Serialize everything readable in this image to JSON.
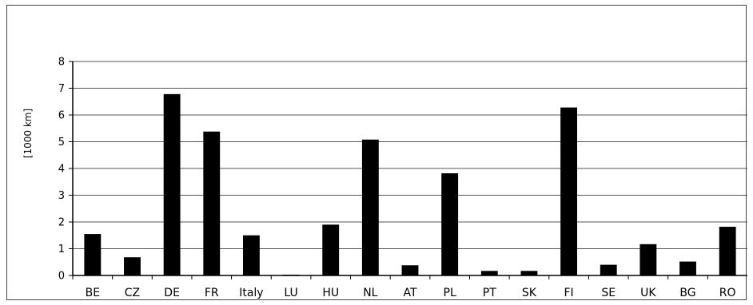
{
  "chart_data": {
    "type": "bar",
    "title": "",
    "xlabel": "",
    "ylabel": "[1000 km]",
    "ylim": [
      0,
      8
    ],
    "yticks": [
      "0",
      "1",
      "2",
      "3",
      "4",
      "5",
      "6",
      "7",
      "8"
    ],
    "grid": true,
    "bar_color": "#000000",
    "categories": [
      "BE",
      "CZ",
      "DE",
      "FR",
      "Italy",
      "LU",
      "HU",
      "NL",
      "AT",
      "PL",
      "PT",
      "SK",
      "FI",
      "SE",
      "UK",
      "BG",
      "RO"
    ],
    "values": [
      1.55,
      0.68,
      6.78,
      5.38,
      1.5,
      0.03,
      1.9,
      5.08,
      0.38,
      3.82,
      0.17,
      0.17,
      6.28,
      0.4,
      1.17,
      0.52,
      1.82
    ]
  }
}
